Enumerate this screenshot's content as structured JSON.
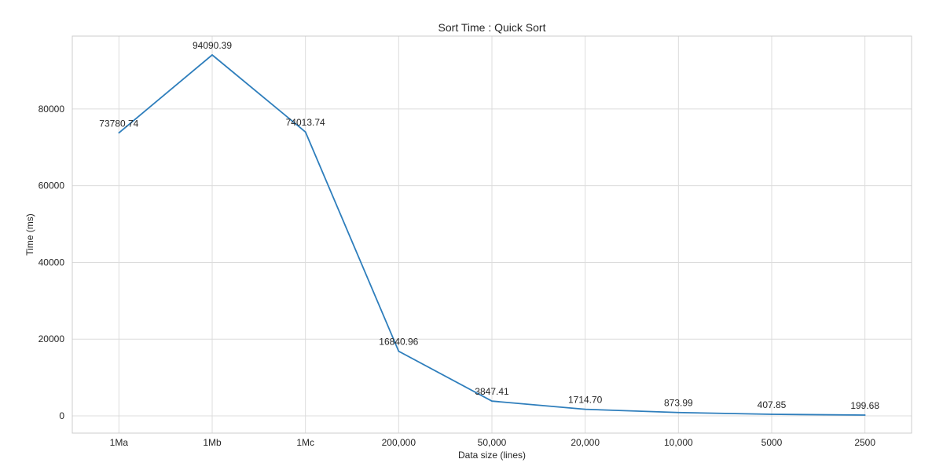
{
  "chart_data": {
    "type": "line",
    "title": "Sort Time : Quick Sort",
    "xlabel": "Data size (lines)",
    "ylabel": "Time (ms)",
    "categories": [
      "1Ma",
      "1Mb",
      "1Mc",
      "200,000",
      "50,000",
      "20,000",
      "10,000",
      "5000",
      "2500"
    ],
    "series": [
      {
        "name": "Quick Sort",
        "color": "#2e7ebc",
        "values": [
          73780.74,
          94090.39,
          74013.74,
          16840.96,
          3847.41,
          1714.7,
          873.99,
          407.85,
          199.68
        ]
      }
    ],
    "data_labels": [
      "73780.74",
      "94090.39",
      "74013.74",
      "16840.96",
      "3847.41",
      "1714.70",
      "873.99",
      "407.85",
      "199.68"
    ],
    "ylim": [
      -4500,
      99000
    ],
    "yticks": [
      0,
      20000,
      40000,
      60000,
      80000
    ],
    "ytick_labels": [
      "0",
      "20000",
      "40000",
      "60000",
      "80000"
    ],
    "grid": true,
    "style_colors": {
      "grid": "#dcdcdc",
      "spine": "#cccccc",
      "text": "#262626"
    }
  }
}
